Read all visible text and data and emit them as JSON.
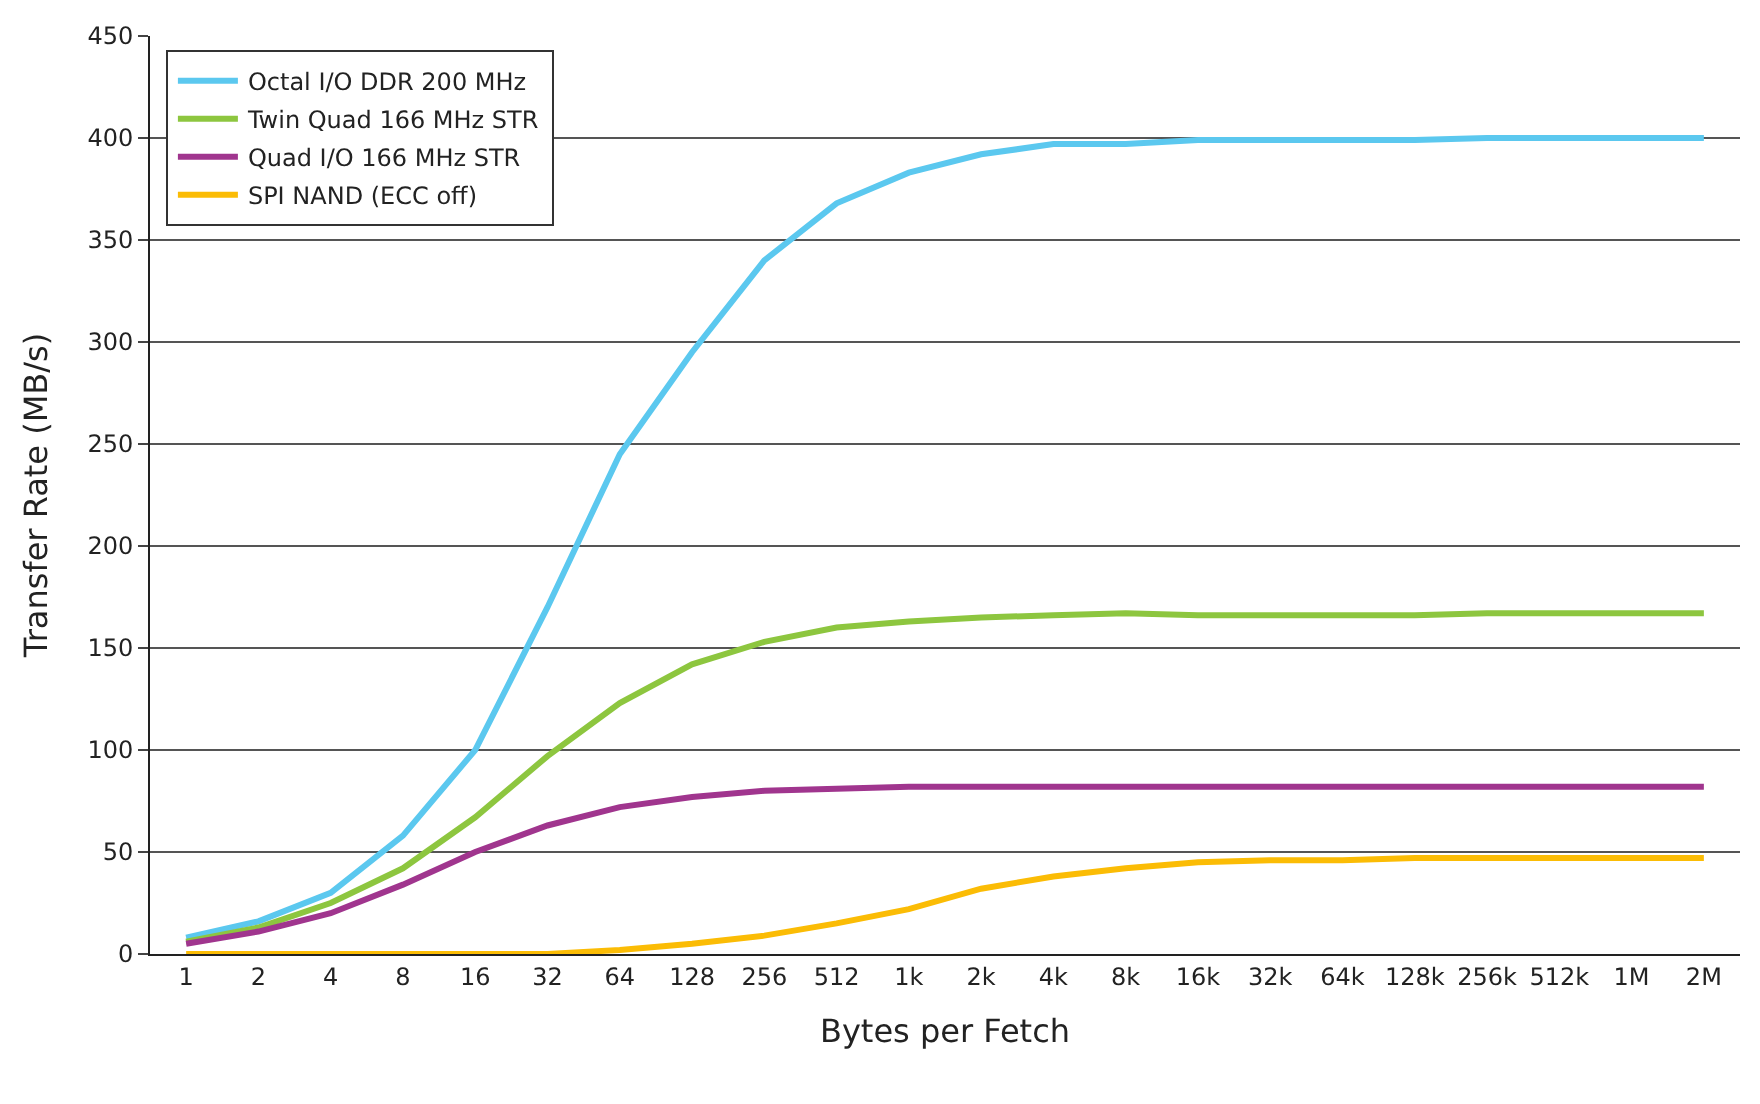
{
  "chart_data": {
    "type": "line",
    "xlabel": "Bytes per Fetch",
    "ylabel": "Transfer Rate (MB/s)",
    "categories": [
      "1",
      "2",
      "4",
      "8",
      "16",
      "32",
      "64",
      "128",
      "256",
      "512",
      "1k",
      "2k",
      "4k",
      "8k",
      "16k",
      "32k",
      "64k",
      "128k",
      "256k",
      "512k",
      "1M",
      "2M"
    ],
    "series": [
      {
        "name": "Octal I/O DDR 200 MHz",
        "color": "#5bc8ef",
        "values": [
          8,
          16,
          30,
          58,
          100,
          170,
          245,
          295,
          340,
          368,
          383,
          392,
          397,
          397,
          399,
          399,
          399,
          399,
          400,
          400,
          400,
          400
        ]
      },
      {
        "name": "Twin Quad 166 MHz STR",
        "color": "#8dc63f",
        "values": [
          6,
          13,
          25,
          42,
          67,
          97,
          123,
          142,
          153,
          160,
          163,
          165,
          166,
          167,
          166,
          166,
          166,
          166,
          167,
          167,
          167,
          167
        ]
      },
      {
        "name": "Quad I/O 166 MHz STR",
        "color": "#a0358e",
        "values": [
          5,
          11,
          20,
          34,
          50,
          63,
          72,
          77,
          80,
          81,
          82,
          82,
          82,
          82,
          82,
          82,
          82,
          82,
          82,
          82,
          82,
          82
        ]
      },
      {
        "name": "SPI NAND (ECC off)",
        "color": "#fbbc05",
        "values": [
          0,
          0,
          0,
          0,
          0,
          0,
          2,
          5,
          9,
          15,
          22,
          32,
          38,
          42,
          45,
          46,
          46,
          47,
          47,
          47,
          47,
          47
        ]
      }
    ],
    "ylim": [
      0,
      450
    ],
    "yticks": [
      0,
      50,
      100,
      150,
      200,
      250,
      300,
      350,
      400,
      450
    ],
    "grid": "y",
    "legend": "top left",
    "marker": "none",
    "line_style": "solid"
  }
}
